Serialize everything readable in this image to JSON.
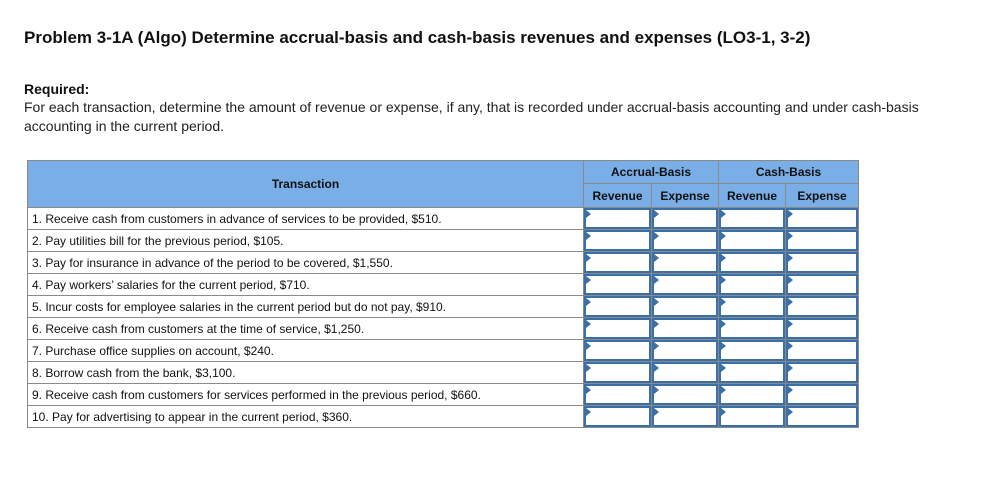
{
  "title": "Problem 3-1A (Algo) Determine accrual-basis and cash-basis revenues and expenses (LO3-1, 3-2)",
  "required_label": "Required:",
  "instructions": "For each transaction, determine the amount of revenue or expense, if any, that is recorded under accrual-basis accounting and under cash-basis accounting in the current period.",
  "table": {
    "transaction_header": "Transaction",
    "accrual_header": "Accrual-Basis",
    "cash_header": "Cash-Basis",
    "sub_headers": [
      "Revenue",
      "Expense",
      "Revenue",
      "Expense"
    ],
    "rows": [
      "1. Receive cash from customers in advance of services to be provided, $510.",
      "2. Pay utilities bill for the previous period, $105.",
      "3. Pay for insurance in advance of the period to be covered, $1,550.",
      "4. Pay workers’ salaries for the current period, $710.",
      "5. Incur costs for employee salaries in the current period but do not pay, $910.",
      "6. Receive cash from customers at the time of service, $1,250.",
      "7. Purchase office supplies on account, $240.",
      "8. Borrow cash from the bank, $3,100.",
      "9. Receive cash from customers for services performed in the previous period, $660.",
      "10. Pay for advertising to appear in the current period, $360."
    ]
  },
  "colors": {
    "header_bg": "#7aaee6",
    "input_border": "#3a6fa8"
  }
}
